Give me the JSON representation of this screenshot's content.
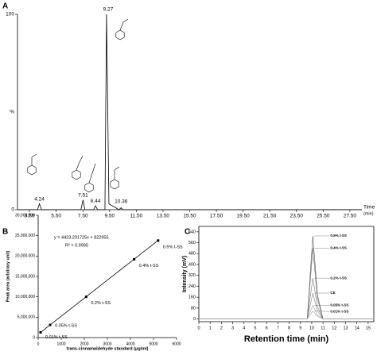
{
  "chart_data": [
    {
      "type": "line",
      "panel": "A",
      "xlabel": "Time",
      "xunit": "(min)",
      "ylabel": "%",
      "xlim": [
        2.6,
        28.4
      ],
      "ylim": [
        0,
        100
      ],
      "yticks": [
        0,
        100
      ],
      "xticks": [
        {
          "value": 3.5,
          "label": "3.50"
        },
        {
          "value": 5.5,
          "label": "5.50"
        },
        {
          "value": 7.5,
          "label": "7.50"
        },
        {
          "value": 9.5,
          "label": "9.50"
        },
        {
          "value": 11.5,
          "label": "11.50"
        },
        {
          "value": 13.5,
          "label": "13.50"
        },
        {
          "value": 15.5,
          "label": "15.50"
        },
        {
          "value": 17.5,
          "label": "17.50"
        },
        {
          "value": 19.5,
          "label": "19.50"
        },
        {
          "value": 21.5,
          "label": "21.50"
        },
        {
          "value": 23.5,
          "label": "23.50"
        },
        {
          "value": 25.5,
          "label": "25.50"
        },
        {
          "value": 27.5,
          "label": "27.50"
        }
      ],
      "x": [
        2.6,
        4.1,
        4.24,
        4.4,
        7.35,
        7.51,
        7.65,
        8.3,
        8.44,
        8.6,
        9.15,
        9.27,
        9.45,
        10.2,
        10.36,
        10.5,
        28.4
      ],
      "values": [
        0,
        0,
        3,
        0,
        0,
        5,
        0,
        0,
        2,
        0,
        0,
        100,
        3,
        0,
        1,
        0,
        0
      ],
      "color": "#000000",
      "peak_labels": [
        4.24,
        7.51,
        8.44,
        9.27,
        10.36
      ]
    },
    {
      "type": "scatter",
      "panel": "B",
      "xlabel": "trans-cinnamaldehyde standard (μg/ml)",
      "ylabel": "Peak area (arbitrary unit)",
      "xlim": [
        0,
        6000
      ],
      "ylim": [
        0,
        30000000
      ],
      "xticks": [
        0,
        1000,
        2000,
        3000,
        4000,
        5000,
        6000
      ],
      "yticks": [
        0,
        {
          "value": 5000000,
          "label": "5,000,000"
        },
        {
          "value": 10000000,
          "label": "10,000,000"
        },
        {
          "value": 15000000,
          "label": "15,000,000"
        },
        {
          "value": 20000000,
          "label": "20,000,000"
        },
        {
          "value": 25000000,
          "label": "25,000,000"
        },
        {
          "value": 30000000,
          "label": "30,000,000"
        }
      ],
      "x": [
        104,
        520,
        2080,
        4160,
        5200
      ],
      "values": [
        1280000,
        3120000,
        10000000,
        19200000,
        23800000
      ],
      "point_labels": [
        "0.01% t-SS",
        "0.05% t-SS",
        "0.2% t-SS",
        "0.4% t-SS",
        "0.5% t-SS"
      ],
      "equation": "y = 4423.291725x + 822955",
      "r2": "R² = 0.9995",
      "trendline": {
        "slope": 4423.291725,
        "intercept": 822955
      },
      "color": "#000000"
    },
    {
      "type": "line",
      "panel": "C",
      "xlabel": "Retention time (min)",
      "ylabel": "Intensity (mV)",
      "xlim": [
        0,
        15.5
      ],
      "ylim": [
        -20,
        680
      ],
      "xticks": [
        0,
        1,
        2,
        3,
        4,
        5,
        6,
        7,
        8,
        9,
        10,
        11,
        12,
        13,
        14,
        15
      ],
      "yticks": [
        0,
        80,
        160,
        240,
        320,
        400,
        480,
        560,
        640
      ],
      "x": [
        0,
        9.6,
        9.9,
        10.1,
        10.5,
        11,
        15.5
      ],
      "series": [
        {
          "name": "0.5% t-SS",
          "color": "#555555",
          "values": [
            0,
            0,
            370,
            610,
            180,
            0,
            0
          ]
        },
        {
          "name": "0.4% t-SS",
          "color": "#666666",
          "values": [
            0,
            0,
            310,
            520,
            150,
            0,
            0
          ]
        },
        {
          "name": "0.2% t-SS",
          "color": "#777777",
          "values": [
            0,
            0,
            180,
            300,
            90,
            0,
            0
          ]
        },
        {
          "name": "CE",
          "color": "#888888",
          "values": [
            0,
            0,
            115,
            190,
            60,
            0,
            0
          ]
        },
        {
          "name": "0.05% t-SS",
          "color": "#999999",
          "values": [
            0,
            0,
            60,
            100,
            30,
            0,
            0
          ]
        },
        {
          "name": "0.01% t-SS",
          "color": "#aaaaaa",
          "values": [
            0,
            0,
            35,
            60,
            18,
            0,
            0
          ]
        }
      ]
    }
  ]
}
